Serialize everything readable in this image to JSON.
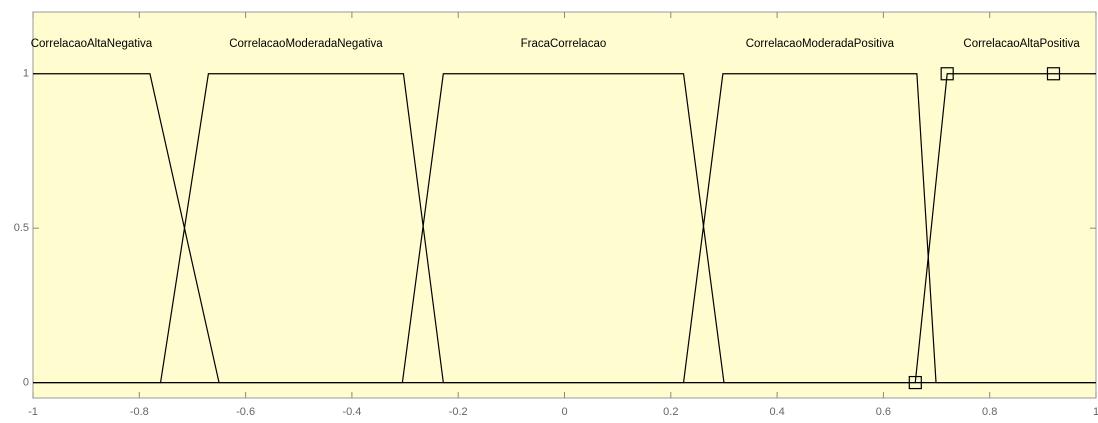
{
  "chart_data": {
    "type": "line",
    "xlim": [
      -1,
      1
    ],
    "ylim": [
      -0.05,
      1.2
    ],
    "xticks": [
      -1,
      -0.8,
      -0.6,
      -0.4,
      -0.2,
      0,
      0.2,
      0.4,
      0.6,
      0.8,
      1
    ],
    "yticks": [
      0,
      0.5,
      1
    ],
    "background": "#fffdd0",
    "series": [
      {
        "name": "CorrelacaoAltaNegativa",
        "color": "#000000",
        "x": [
          -1,
          -0.78,
          -0.65,
          1
        ],
        "values": [
          1,
          1,
          0,
          0
        ]
      },
      {
        "name": "CorrelacaoModeradaNegativa",
        "color": "#000000",
        "x": [
          -1,
          -0.76,
          -0.67,
          -0.303,
          -0.228,
          1
        ],
        "values": [
          0,
          0,
          1,
          1,
          0,
          0
        ]
      },
      {
        "name": "FracaCorrelacao",
        "color": "#000000",
        "x": [
          -1,
          -0.305,
          -0.228,
          0.224,
          0.3,
          1
        ],
        "values": [
          0,
          0,
          1,
          1,
          0,
          0
        ]
      },
      {
        "name": "CorrelacaoModeradaPositiva",
        "color": "#000000",
        "x": [
          -1,
          0.224,
          0.298,
          0.663,
          0.699,
          1
        ],
        "values": [
          0,
          0,
          1,
          1,
          0,
          0
        ]
      },
      {
        "name": "CorrelacaoAltaPositiva",
        "color": "#000000",
        "marker": "square",
        "x": [
          -1,
          0.66,
          0.72,
          0.92,
          1
        ],
        "values": [
          0,
          0,
          1,
          1,
          1
        ]
      }
    ]
  }
}
